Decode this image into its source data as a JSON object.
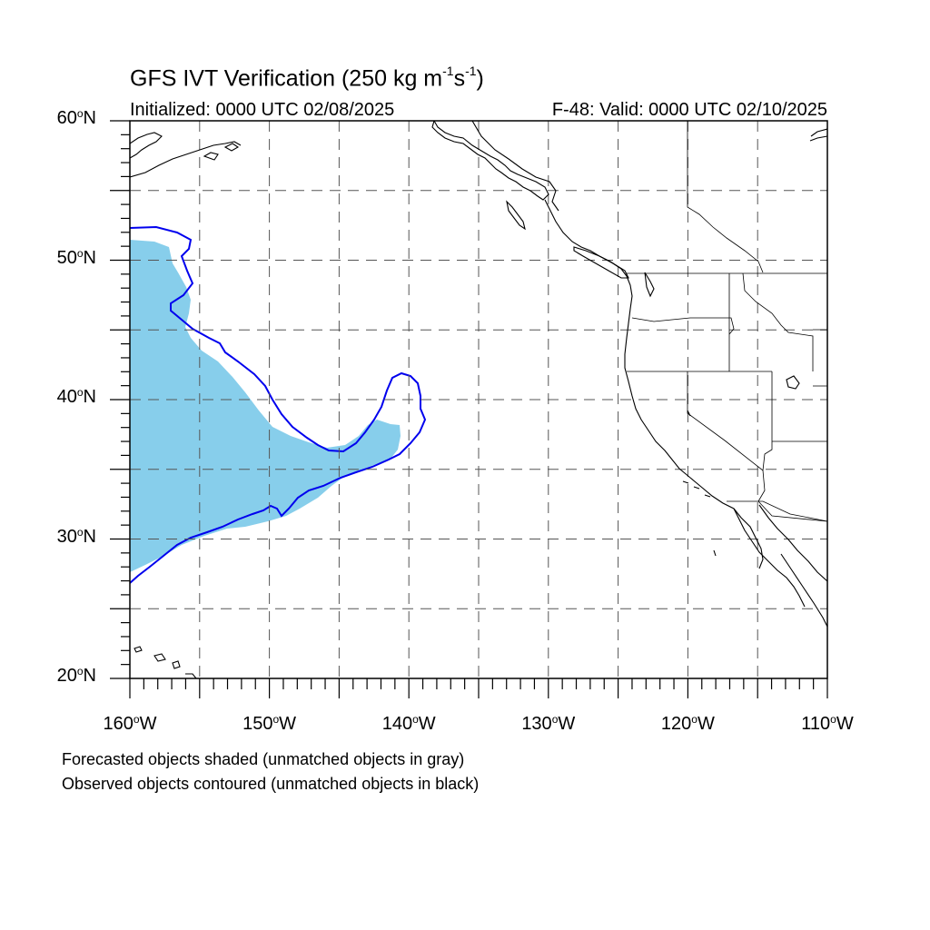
{
  "title": {
    "text": "GFS IVT Verification (250 kg m",
    "exp1": "-1",
    "mid": "s",
    "exp2": "-1",
    "end": ")"
  },
  "subtitle_left": "Initialized: 0000 UTC 02/08/2025",
  "subtitle_right": "F-48: Valid: 0000 UTC 02/10/2025",
  "lat_labels": [
    {
      "value": "60",
      "suffix": "N"
    },
    {
      "value": "50",
      "suffix": "N"
    },
    {
      "value": "40",
      "suffix": "N"
    },
    {
      "value": "30",
      "suffix": "N"
    },
    {
      "value": "20",
      "suffix": "N"
    }
  ],
  "lon_labels": [
    {
      "value": "160",
      "suffix": "W"
    },
    {
      "value": "150",
      "suffix": "W"
    },
    {
      "value": "140",
      "suffix": "W"
    },
    {
      "value": "130",
      "suffix": "W"
    },
    {
      "value": "120",
      "suffix": "W"
    },
    {
      "value": "110",
      "suffix": "W"
    }
  ],
  "degree_symbol": "o",
  "captions": [
    "Forecasted objects shaded (unmatched objects in gray)",
    "Observed objects contoured (unmatched objects in black)"
  ],
  "colors": {
    "forecast_fill": "#87ceeb",
    "observed_contour": "#0000ee",
    "coastline": "#000000",
    "grid": "#555555"
  },
  "map": {
    "lon_range": [
      -160,
      -110
    ],
    "lat_range": [
      20,
      60
    ],
    "grid_lon_step": 5,
    "grid_lat_step": 5,
    "grid_style": "dashed"
  }
}
